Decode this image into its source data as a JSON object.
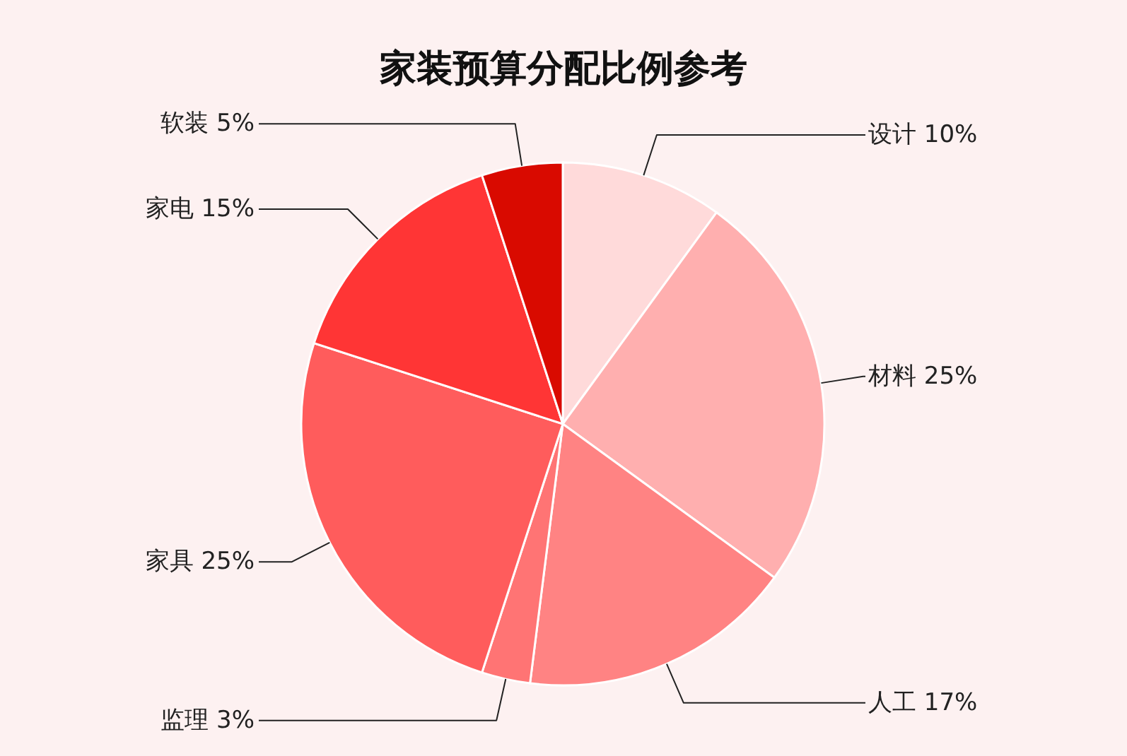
{
  "chart_data": {
    "type": "pie",
    "title": "家装预算分配比例参考",
    "categories": [
      "设计",
      "材料",
      "人工",
      "监理",
      "家具",
      "家电",
      "软装"
    ],
    "values": [
      10,
      25,
      17,
      3,
      25,
      15,
      5
    ],
    "value_labels": [
      "10%",
      "25%",
      "17%",
      "3%",
      "25%",
      "15%",
      "5%"
    ],
    "colors": [
      "#ffdada",
      "#ffafaf",
      "#ff8383",
      "#ff7474",
      "#ff5c5c",
      "#ff3535",
      "#d90a00"
    ]
  }
}
